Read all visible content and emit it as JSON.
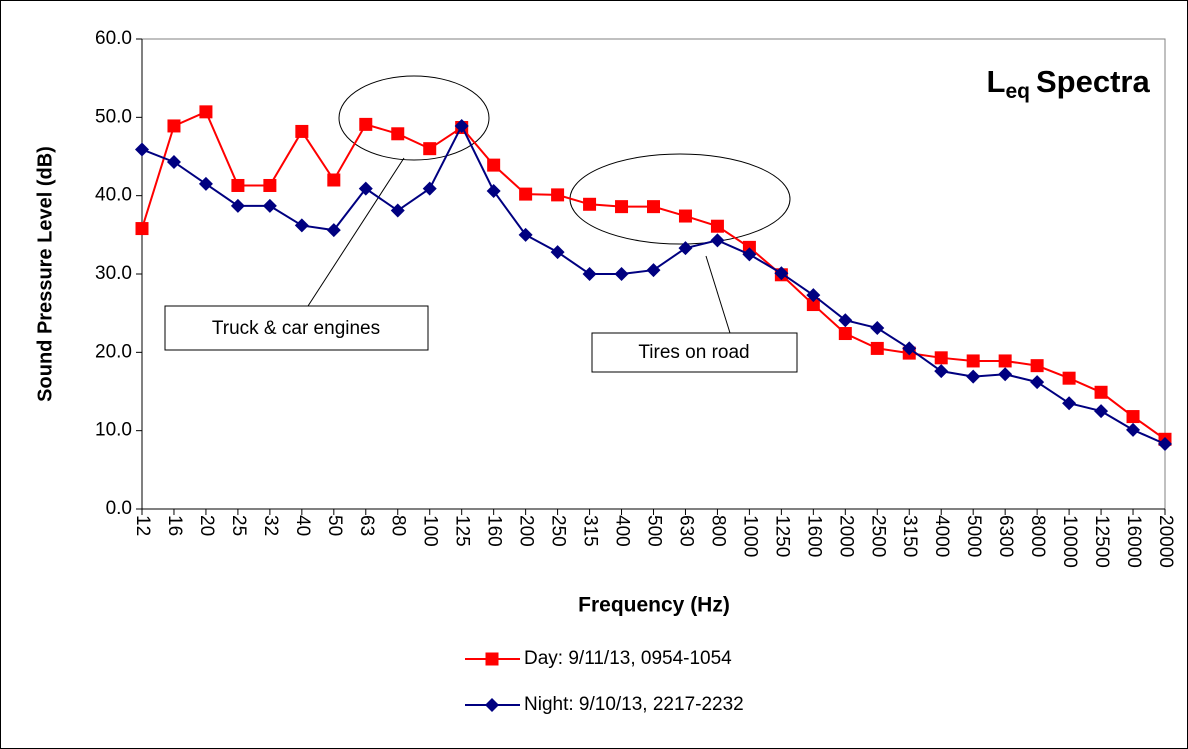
{
  "chart_data": {
    "type": "line",
    "title": {
      "base": "L",
      "subscript": "eq",
      "rest": "Spectra"
    },
    "x_label": "Frequency (Hz)",
    "y_label": "Sound  Pressure Level (dB)",
    "categories": [
      "12",
      "16",
      "20",
      "25",
      "32",
      "40",
      "50",
      "63",
      "80",
      "100",
      "125",
      "160",
      "200",
      "250",
      "315",
      "400",
      "500",
      "630",
      "800",
      "1000",
      "1250",
      "1600",
      "2000",
      "2500",
      "3150",
      "4000",
      "5000",
      "6300",
      "8000",
      "10000",
      "12500",
      "16000",
      "20000"
    ],
    "series": [
      {
        "name": "Day: 9/11/13, 0954-1054",
        "color": "#ff0000",
        "marker": "square",
        "values": [
          35.8,
          48.9,
          50.7,
          41.3,
          41.3,
          48.2,
          42.0,
          49.1,
          47.9,
          46.0,
          48.7,
          43.9,
          40.2,
          40.1,
          38.9,
          38.6,
          38.6,
          37.4,
          36.1,
          33.4,
          29.9,
          26.1,
          22.4,
          20.5,
          19.9,
          19.3,
          18.9,
          18.9,
          18.3,
          16.7,
          14.9,
          11.8,
          8.9
        ]
      },
      {
        "name": "Night: 9/10/13, 2217-2232",
        "color": "#000080",
        "marker": "diamond",
        "values": [
          45.9,
          44.3,
          41.5,
          38.7,
          38.7,
          36.2,
          35.6,
          40.9,
          38.1,
          40.9,
          48.9,
          40.6,
          35.0,
          32.8,
          30.0,
          30.0,
          30.5,
          33.3,
          34.3,
          32.5,
          30.1,
          27.3,
          24.1,
          23.1,
          20.5,
          17.6,
          16.9,
          17.2,
          16.2,
          13.5,
          12.5,
          10.1,
          8.3
        ]
      }
    ],
    "ylim": [
      0,
      60
    ],
    "yticks": [
      {
        "value": 0,
        "label": "0.0"
      },
      {
        "value": 10,
        "label": "10.0"
      },
      {
        "value": 20,
        "label": "20.0"
      },
      {
        "value": 30,
        "label": "30.0"
      },
      {
        "value": 40,
        "label": "40.0"
      },
      {
        "value": 50,
        "label": "50.0"
      },
      {
        "value": 60,
        "label": "60.0"
      }
    ],
    "grid": false,
    "annotations": [
      "Truck & car engines",
      "Tires on road"
    ]
  }
}
